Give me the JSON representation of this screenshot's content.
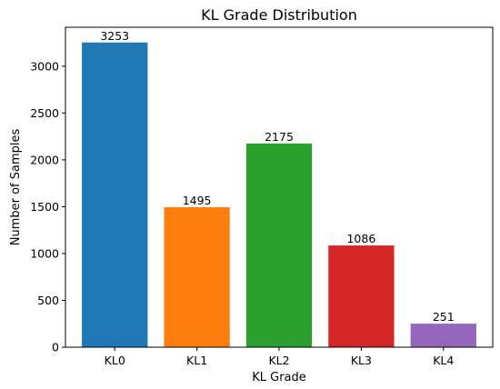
{
  "chart_data": {
    "type": "bar",
    "title": "KL Grade Distribution",
    "xlabel": "KL Grade",
    "ylabel": "Number of Samples",
    "categories": [
      "KL0",
      "KL1",
      "KL2",
      "KL3",
      "KL4"
    ],
    "values": [
      3253,
      1495,
      2175,
      1086,
      251
    ],
    "data_labels": [
      "3253",
      "1495",
      "2175",
      "1086",
      "251"
    ],
    "colors": [
      "#1f77b4",
      "#ff7f0e",
      "#2ca02c",
      "#d62728",
      "#9467bd"
    ],
    "ylim": [
      0,
      3415.65
    ],
    "yticks": [
      0,
      500,
      1000,
      1500,
      2000,
      2500,
      3000
    ],
    "ytick_labels": [
      "0",
      "500",
      "1000",
      "1500",
      "2000",
      "2500",
      "3000"
    ],
    "grid": false,
    "legend": "none"
  }
}
